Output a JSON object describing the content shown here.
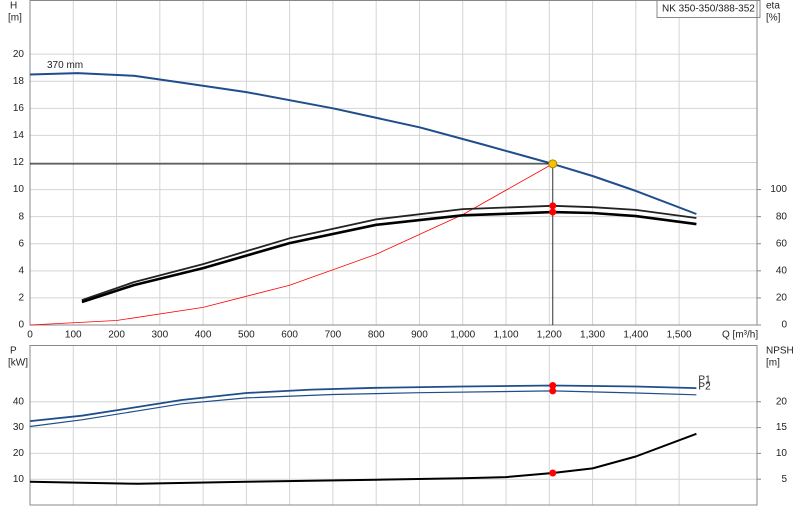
{
  "chart_data": [
    {
      "type": "line",
      "title": "NK 350-350/388-352",
      "x_label": "Q [m³/h]",
      "y_label": "H",
      "y_unit": "[m]",
      "y2_label": "eta",
      "y2_unit": "[%]",
      "xlim": [
        0,
        1680
      ],
      "ylim": [
        0,
        24
      ],
      "y2lim": [
        0,
        240
      ],
      "xticks": [
        0,
        100,
        200,
        300,
        400,
        500,
        600,
        700,
        800,
        900,
        {
          "value": 1000,
          "label": "1,000"
        },
        {
          "value": 1100,
          "label": "1,100"
        },
        {
          "value": 1200,
          "label": "1,200"
        },
        {
          "value": 1300,
          "label": "1,300"
        },
        {
          "value": 1400,
          "label": "1,400"
        },
        {
          "value": 1500,
          "label": "1,500"
        }
      ],
      "yticks": [
        0,
        2,
        4,
        6,
        8,
        10,
        12,
        14,
        16,
        18,
        20
      ],
      "y2ticks": [
        0,
        20,
        40,
        60,
        80,
        100
      ],
      "grid": true,
      "duty_point": {
        "x": 1208,
        "y": 11.9,
        "color": "#f5c400"
      },
      "series": [
        {
          "name": "370 mm",
          "color": "#1f4e8c",
          "width": 2,
          "x": [
            0,
            110,
            240,
            350,
            500,
            700,
            900,
            1050,
            1208,
            1300,
            1400,
            1540
          ],
          "values": [
            18.5,
            18.6,
            18.4,
            17.9,
            17.2,
            16.0,
            14.6,
            13.3,
            11.9,
            11.0,
            9.9,
            8.2
          ]
        },
        {
          "color": "#ff0000",
          "width": 0.8,
          "x": [
            0,
            200,
            400,
            600,
            800,
            1000,
            1208
          ],
          "values": [
            0,
            0.33,
            1.3,
            2.94,
            5.22,
            8.15,
            11.9
          ]
        },
        {
          "color": "#222222",
          "width": 1.8,
          "axis": "y2",
          "marker_color": "#ff0000",
          "x": [
            120,
            240,
            400,
            600,
            800,
            1000,
            1208,
            1300,
            1400,
            1540
          ],
          "values": [
            18.4,
            31.7,
            45,
            64,
            78,
            85.6,
            88,
            87,
            85,
            79
          ]
        },
        {
          "color": "#000000",
          "width": 2.6,
          "axis": "y2",
          "marker_color": "#ff0000",
          "x": [
            120,
            240,
            400,
            600,
            800,
            1000,
            1208,
            1300,
            1400,
            1540
          ],
          "values": [
            17,
            29.5,
            42,
            60.5,
            74,
            81,
            83.4,
            82.7,
            80.4,
            74.5
          ]
        }
      ]
    },
    {
      "type": "line",
      "y_label": "P",
      "y_unit": "[kW]",
      "y2_label": "NPSH",
      "y2_unit": "[m]",
      "xlim": [
        0,
        1680
      ],
      "ylim": [
        0,
        62
      ],
      "y2lim": [
        0,
        31
      ],
      "yticks": [
        10,
        20,
        30,
        40
      ],
      "y2ticks": [
        5,
        10,
        15,
        20
      ],
      "grid": true,
      "series": [
        {
          "name": "P1",
          "color": "#1f4e8c",
          "width": 1.8,
          "marker_color": "#ff0000",
          "x": [
            0,
            120,
            250,
            350,
            500,
            650,
            800,
            1000,
            1208,
            1400,
            1540
          ],
          "values": [
            32.5,
            34.6,
            38.0,
            40.7,
            43.4,
            44.7,
            45.4,
            45.9,
            46.3,
            45.9,
            45.3
          ]
        },
        {
          "name": "P2",
          "color": "#1f4e8c",
          "width": 1.2,
          "marker_color": "#ff0000",
          "x": [
            0,
            120,
            250,
            350,
            500,
            700,
            900,
            1208,
            1400,
            1540
          ],
          "values": [
            30.4,
            33.0,
            36.5,
            39.2,
            41.5,
            42.8,
            43.5,
            44.2,
            43.4,
            42.7
          ]
        },
        {
          "color": "#000000",
          "width": 2,
          "axis": "y2",
          "marker_color": "#ff0000",
          "x": [
            0,
            120,
            250,
            500,
            800,
            1000,
            1100,
            1208,
            1300,
            1400,
            1540
          ],
          "values": [
            4.5,
            4.3,
            4.1,
            4.5,
            4.9,
            5.2,
            5.4,
            6.2,
            7.1,
            9.4,
            13.8
          ]
        }
      ]
    }
  ]
}
